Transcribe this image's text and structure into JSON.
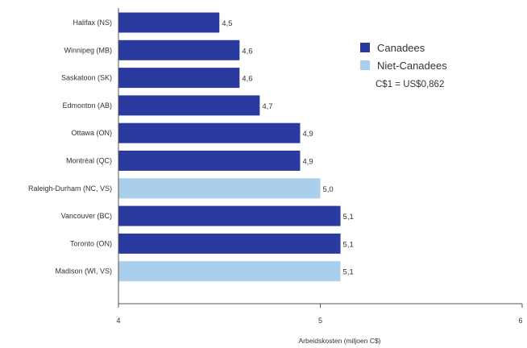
{
  "chart_data": {
    "type": "bar",
    "orientation": "horizontal",
    "categories": [
      "Halifax (NS)",
      "Winnipeg (MB)",
      "Saskatoon (SK)",
      "Edmonton (AB)",
      "Ottawa (ON)",
      "Montréal (QC)",
      "Raleigh-Durham (NC, VS)",
      "Vancouver (BC)",
      "Toronto (ON)",
      "Madison (WI, VS)"
    ],
    "values": [
      4.5,
      4.6,
      4.6,
      4.7,
      4.9,
      4.9,
      5.0,
      5.1,
      5.1,
      5.1
    ],
    "value_labels": [
      "4,5",
      "4,6",
      "4,6",
      "4,7",
      "4,9",
      "4,9",
      "5,0",
      "5,1",
      "5,1",
      "5,1"
    ],
    "groups": [
      "Canadees",
      "Canadees",
      "Canadees",
      "Canadees",
      "Canadees",
      "Canadees",
      "Niet-Canadees",
      "Canadees",
      "Canadees",
      "Niet-Canadees"
    ],
    "xlim": [
      4,
      6
    ],
    "xticks": [
      4,
      5,
      6
    ],
    "xtick_labels": [
      "4",
      "5",
      "6"
    ],
    "xlabel": "Arbeidskosten (miljoen C$)",
    "ylabel": "",
    "title": "",
    "grid": false,
    "legend": {
      "placement": "top-right",
      "entries": [
        {
          "name": "Canadees",
          "color": "#2b3a9e"
        },
        {
          "name": "Niet-Canadees",
          "color": "#a9cfec"
        }
      ]
    },
    "annotation": "C$1 = US$0,862"
  }
}
